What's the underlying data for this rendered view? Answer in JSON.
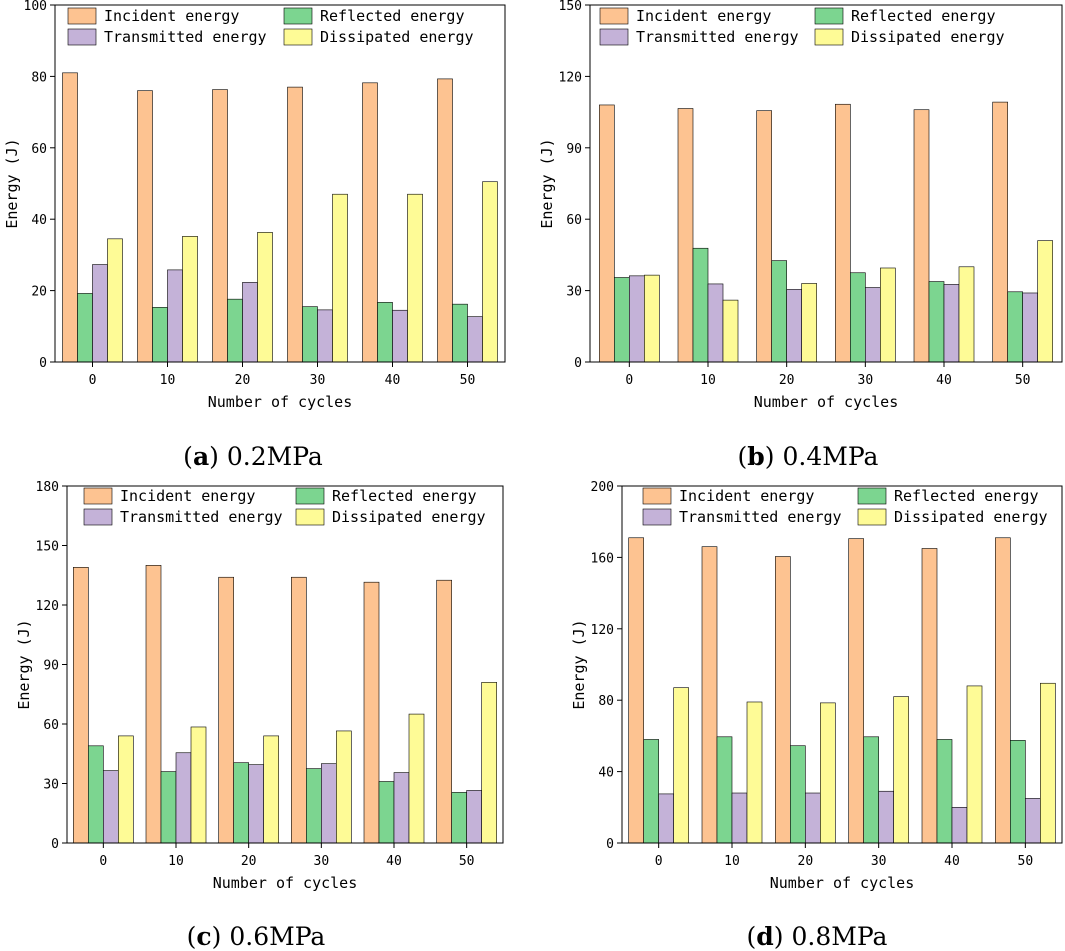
{
  "colors": {
    "incident": "#FDC391",
    "reflected": "#7CD590",
    "transmitted": "#C4B2D8",
    "dissipated": "#FEFB96"
  },
  "chart_data": [
    {
      "type": "bar",
      "panel": "a",
      "caption_letter": "a",
      "caption_text": " 0.2MPa",
      "xlabel": "Number of cycles",
      "ylabel": "Energy (J)",
      "ylim": [
        0,
        100
      ],
      "yticks": [
        "0",
        "20",
        "40",
        "60",
        "80",
        "100"
      ],
      "categories": [
        "0",
        "10",
        "20",
        "30",
        "40",
        "50"
      ],
      "series": [
        {
          "name": "Incident energy",
          "key": "incident",
          "values": [
            81,
            76,
            76.3,
            77,
            78.2,
            79.3
          ]
        },
        {
          "name": "Reflected energy",
          "key": "reflected",
          "values": [
            19.2,
            15.3,
            17.6,
            15.5,
            16.7,
            16.2
          ]
        },
        {
          "name": "Transmitted energy",
          "key": "transmitted",
          "values": [
            27.3,
            25.8,
            22.3,
            14.6,
            14.5,
            12.7
          ]
        },
        {
          "name": "Dissipated energy",
          "key": "dissipated",
          "values": [
            34.5,
            35.2,
            36.3,
            47,
            47,
            50.5
          ]
        }
      ]
    },
    {
      "type": "bar",
      "panel": "b",
      "caption_letter": "b",
      "caption_text": " 0.4MPa",
      "xlabel": "Number of cycles",
      "ylabel": "Energy (J)",
      "ylim": [
        0,
        150
      ],
      "yticks": [
        "0",
        "30",
        "60",
        "90",
        "120",
        "150"
      ],
      "categories": [
        "0",
        "10",
        "20",
        "30",
        "40",
        "50"
      ],
      "series": [
        {
          "name": "Incident energy",
          "key": "incident",
          "values": [
            108,
            106.5,
            105.6,
            108.3,
            106,
            109.2
          ]
        },
        {
          "name": "Reflected energy",
          "key": "reflected",
          "values": [
            35.5,
            47.8,
            42.6,
            37.5,
            33.8,
            29.5
          ]
        },
        {
          "name": "Transmitted energy",
          "key": "transmitted",
          "values": [
            36.2,
            32.8,
            30.5,
            31.3,
            32.6,
            29
          ]
        },
        {
          "name": "Dissipated energy",
          "key": "dissipated",
          "values": [
            36.5,
            26,
            33,
            39.5,
            40,
            51
          ]
        }
      ]
    },
    {
      "type": "bar",
      "panel": "c",
      "caption_letter": "c",
      "caption_text": " 0.6MPa",
      "xlabel": "Number of cycles",
      "ylabel": "Energy (J)",
      "ylim": [
        0,
        180
      ],
      "yticks": [
        "0",
        "30",
        "60",
        "90",
        "120",
        "150",
        "180"
      ],
      "categories": [
        "0",
        "10",
        "20",
        "30",
        "40",
        "50"
      ],
      "series": [
        {
          "name": "Incident energy",
          "key": "incident",
          "values": [
            139,
            140,
            134,
            134,
            131.5,
            132.5
          ]
        },
        {
          "name": "Reflected energy",
          "key": "reflected",
          "values": [
            49,
            36,
            40.5,
            37.5,
            31,
            25.5
          ]
        },
        {
          "name": "Transmitted energy",
          "key": "transmitted",
          "values": [
            36.5,
            45.5,
            39.5,
            40,
            35.5,
            26.5
          ]
        },
        {
          "name": "Dissipated energy",
          "key": "dissipated",
          "values": [
            54,
            58.5,
            54,
            56.5,
            65,
            81
          ]
        }
      ]
    },
    {
      "type": "bar",
      "panel": "d",
      "caption_letter": "d",
      "caption_text": " 0.8MPa",
      "xlabel": "Number of cycles",
      "ylabel": "Energy (J)",
      "ylim": [
        0,
        200
      ],
      "yticks": [
        "0",
        "40",
        "80",
        "120",
        "160",
        "200"
      ],
      "categories": [
        "0",
        "10",
        "20",
        "30",
        "40",
        "50"
      ],
      "series": [
        {
          "name": "Incident energy",
          "key": "incident",
          "values": [
            171,
            166,
            160.5,
            170.5,
            165,
            171
          ]
        },
        {
          "name": "Reflected energy",
          "key": "reflected",
          "values": [
            58,
            59.5,
            54.5,
            59.5,
            58,
            57.5
          ]
        },
        {
          "name": "Transmitted energy",
          "key": "transmitted",
          "values": [
            27.5,
            28,
            28,
            29,
            20,
            25
          ]
        },
        {
          "name": "Dissipated energy",
          "key": "dissipated",
          "values": [
            87,
            79,
            78.5,
            82,
            88,
            89.5
          ]
        }
      ]
    }
  ]
}
